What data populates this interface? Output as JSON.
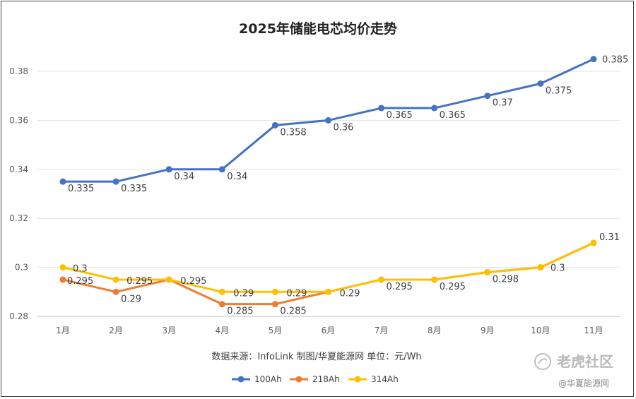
{
  "chart_data": {
    "type": "line",
    "title": "2025年储能电芯均价走势",
    "categories": [
      "1月",
      "2月",
      "3月",
      "4月",
      "5月",
      "6月",
      "7月",
      "8月",
      "9月",
      "10月",
      "11月"
    ],
    "ylim": [
      0.28,
      0.39
    ],
    "yticks": [
      0.28,
      0.3,
      0.32,
      0.34,
      0.36,
      0.38
    ],
    "ytick_labels": [
      "0.28",
      "0.3",
      "0.32",
      "0.34",
      "0.36",
      "0.38"
    ],
    "grid": true,
    "legend": "bottom-center",
    "series": [
      {
        "name": "100Ah",
        "color": "#4472C4",
        "values": [
          0.335,
          0.335,
          0.34,
          0.34,
          0.358,
          0.36,
          0.365,
          0.365,
          0.37,
          0.375,
          0.385
        ],
        "labels": [
          "0.335",
          "0.335",
          "0.34",
          "0.34",
          "0.358",
          "0.36",
          "0.365",
          "0.365",
          "0.37",
          "0.375",
          "0.385"
        ]
      },
      {
        "name": "218Ah",
        "color": "#ED7D31",
        "values": [
          0.295,
          0.29,
          0.295,
          0.285,
          0.285,
          0.29,
          0.295,
          0.295,
          0.298,
          0.3,
          0.31
        ],
        "labels": [
          "0.295",
          "0.29",
          "",
          "0.285",
          "0.285",
          "",
          "",
          "",
          "",
          "",
          ""
        ]
      },
      {
        "name": "314Ah",
        "color": "#FFC000",
        "values": [
          0.3,
          0.295,
          0.295,
          0.29,
          0.29,
          0.29,
          0.295,
          0.295,
          0.298,
          0.3,
          0.31
        ],
        "labels": [
          "0.3",
          "0.295",
          "0.295",
          "0.29",
          "0.29",
          "0.29",
          "0.295",
          "0.295",
          "0.298",
          "0.3",
          "0.31"
        ]
      }
    ],
    "source_note": "数据来源：InfoLink 制图/华夏能源网  单位：元/Wh"
  },
  "watermark": {
    "brand": "老虎社区",
    "handle": "@华夏能源网"
  }
}
